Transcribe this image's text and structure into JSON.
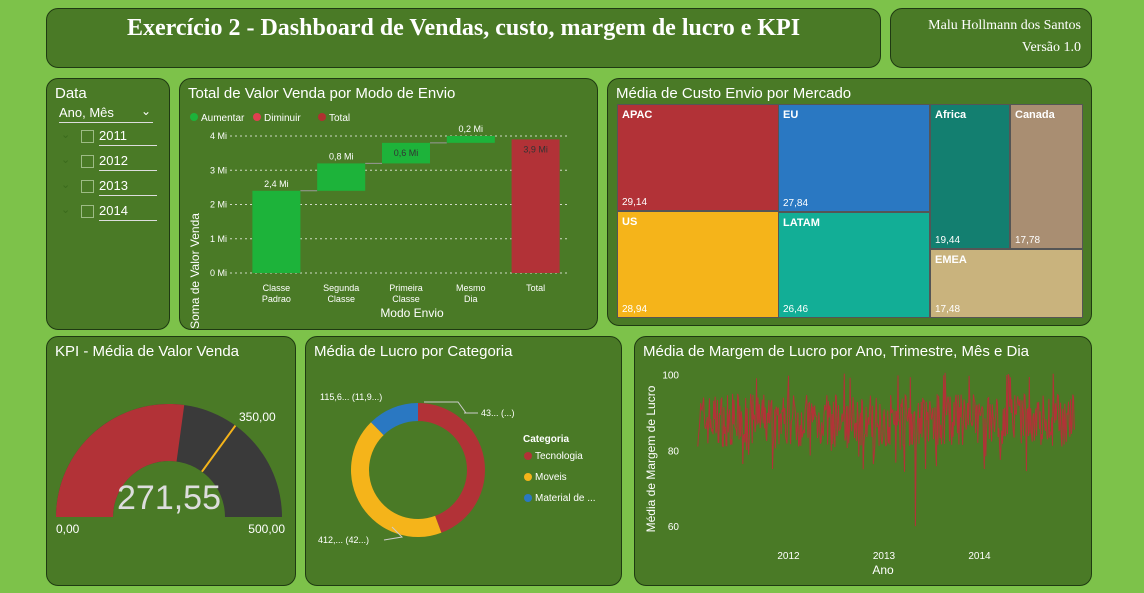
{
  "header": {
    "title": "Exercício 2 - Dashboard de Vendas, custo, margem de lucro e KPI",
    "author": "Malu Hollmann dos Santos",
    "version": "Versão 1.0"
  },
  "slicer": {
    "title": "Data",
    "field": "Ano, Mês",
    "years": [
      "2011",
      "2012",
      "2013",
      "2014"
    ]
  },
  "waterfall": {
    "title": "Total de Valor Venda por Modo de Envio",
    "legend": [
      {
        "label": "Aumentar",
        "color": "#1db33a"
      },
      {
        "label": "Diminuir",
        "color": "#e04050"
      },
      {
        "label": "Total",
        "color": "#b03030"
      }
    ],
    "ylabel": "Soma de Valor Venda",
    "xlabel": "Modo Envio",
    "ticks": [
      "0 Mi",
      "1 Mi",
      "2 Mi",
      "3 Mi",
      "4 Mi"
    ],
    "chart_data": {
      "type": "bar",
      "categories": [
        "Classe Padrao",
        "Segunda Classe",
        "Primeira Classe",
        "Mesmo Dia",
        "Total"
      ],
      "values": [
        2.4,
        0.8,
        0.6,
        0.2,
        3.9
      ],
      "labels": [
        "2,4 Mi",
        "0,8 Mi",
        "0,6 Mi",
        "0,2 Mi",
        "3,9 Mi"
      ],
      "ylim": [
        0,
        4
      ]
    }
  },
  "treemap": {
    "title": "Média de Custo Envio por Mercado",
    "tiles": [
      {
        "name": "APAC",
        "value": "29,14",
        "color": "#b23237"
      },
      {
        "name": "EU",
        "value": "27,84",
        "color": "#2a78c2"
      },
      {
        "name": "US",
        "value": "28,94",
        "color": "#f5b41a"
      },
      {
        "name": "LATAM",
        "value": "26,46",
        "color": "#12ae96"
      },
      {
        "name": "Africa",
        "value": "19,44",
        "color": "#137f70"
      },
      {
        "name": "Canada",
        "value": "17,78",
        "color": "#a98e72"
      },
      {
        "name": "EMEA",
        "value": "17,48",
        "color": "#c9b37d"
      }
    ]
  },
  "gauge": {
    "title": "KPI - Média de Valor Venda",
    "value": 271.55,
    "value_label": "271,55",
    "min_label": "0,00",
    "max_label": "500,00",
    "target_label": "350,00",
    "min": 0,
    "max": 500,
    "target": 350,
    "fill_color": "#b23237",
    "rest_color": "#3a3a3a",
    "target_color": "#f5b41a"
  },
  "donut": {
    "title": "Média de Lucro por Categoria",
    "legend_title": "Categoria",
    "labels": [
      "43... (...)",
      "412,... (42...)",
      "115,6... (11,9...)"
    ],
    "chart_data": {
      "type": "pie",
      "categories": [
        "Tecnologia",
        "Moveis",
        "Material de ..."
      ],
      "values": [
        43,
        42,
        12
      ],
      "colors": [
        "#b23237",
        "#f5b41a",
        "#2a78c2"
      ]
    }
  },
  "line": {
    "title": "Média de Margem de Lucro por Ano, Trimestre, Mês e Dia",
    "ylabel": "Média de Margem de Lucro",
    "xlabel": "Ano",
    "yticks": [
      "60",
      "80",
      "100"
    ],
    "xticks": [
      "2012",
      "2013",
      "2014"
    ],
    "chart_data": {
      "type": "line",
      "ylim": [
        55,
        102
      ],
      "xlim": [
        2011,
        2015
      ],
      "color": "#b23237"
    }
  }
}
